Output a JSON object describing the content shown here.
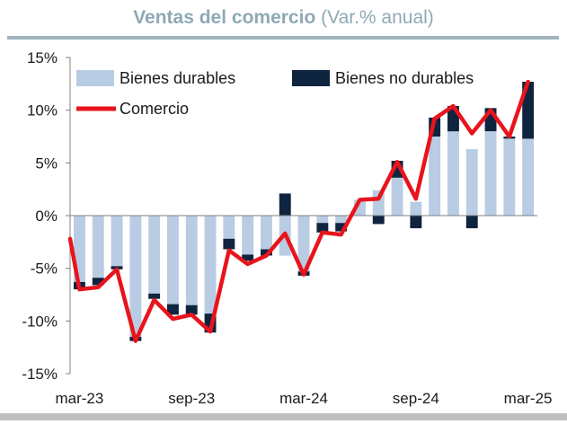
{
  "chart_data": {
    "type": "bar",
    "title": "Ventas del comercio",
    "subtitle": "(Var.% anual)",
    "ylim": [
      -15,
      15
    ],
    "yticks": [
      "15%",
      "10%",
      "5%",
      "0%",
      "-5%",
      "-10%",
      "-15%"
    ],
    "ytick_values": [
      15,
      10,
      5,
      0,
      -5,
      -10,
      -15
    ],
    "xticks": [
      {
        "label": "mar-23",
        "index": 0
      },
      {
        "label": "sep-23",
        "index": 6
      },
      {
        "label": "mar-24",
        "index": 12
      },
      {
        "label": "sep-24",
        "index": 18
      },
      {
        "label": "mar-25",
        "index": 24
      }
    ],
    "categories": [
      "mar-23",
      "abr-23",
      "may-23",
      "jun-23",
      "jul-23",
      "ago-23",
      "sep-23",
      "oct-23",
      "nov-23",
      "dic-23",
      "ene-24",
      "feb-24",
      "mar-24",
      "abr-24",
      "may-24",
      "jun-24",
      "jul-24",
      "ago-24",
      "sep-24",
      "oct-24",
      "nov-24",
      "dic-24",
      "ene-25",
      "feb-25",
      "mar-25"
    ],
    "legend_placement": "top",
    "grid": false,
    "series": [
      {
        "name": "Bienes durables",
        "type": "stacked-bar",
        "color": "#b8cce4",
        "values": [
          -6.3,
          -5.9,
          -4.8,
          -11.5,
          -7.4,
          -8.4,
          -8.5,
          -9.3,
          -2.2,
          -3.7,
          -3.2,
          -3.8,
          -5.3,
          -0.7,
          -0.7,
          1.5,
          2.4,
          3.6,
          1.3,
          7.5,
          8.0,
          6.3,
          8.0,
          7.3,
          7.3
        ]
      },
      {
        "name": "Bienes no durables",
        "type": "stacked-bar",
        "color": "#0f243e",
        "values": [
          -0.7,
          -0.7,
          -0.3,
          -0.4,
          -0.5,
          -1.0,
          -0.9,
          -1.8,
          -1.0,
          -0.6,
          -0.6,
          2.1,
          -0.4,
          -0.9,
          -0.8,
          0.0,
          -0.8,
          1.6,
          -1.2,
          1.8,
          2.4,
          -1.2,
          2.2,
          0.2,
          5.4
        ]
      },
      {
        "name": "Comercio",
        "type": "line",
        "color": "#e8141c",
        "values": [
          -7.0,
          -6.8,
          -5.1,
          -11.9,
          -8.0,
          -9.8,
          -9.4,
          -11.0,
          -3.3,
          -4.6,
          -3.8,
          -1.7,
          -5.6,
          -1.6,
          -1.8,
          1.5,
          1.6,
          5.1,
          1.6,
          9.2,
          10.4,
          7.8,
          10.0,
          7.5,
          12.7
        ]
      }
    ]
  }
}
